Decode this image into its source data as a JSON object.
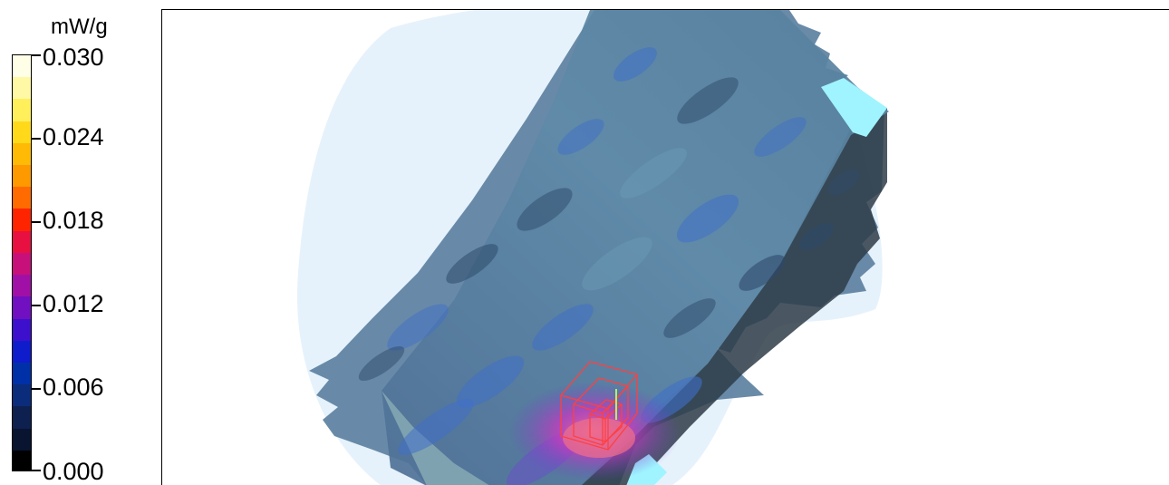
{
  "chart_data": {
    "type": "heatmap",
    "unit": "mW/g",
    "colorbar_ticks": [
      "0.030",
      "0.024",
      "0.018",
      "0.012",
      "0.006",
      "0.000"
    ],
    "value_range": [
      0.0,
      0.03
    ],
    "colorbar_colors": [
      "#ffffe8",
      "#fff9a6",
      "#ffef5a",
      "#ffd91a",
      "#ffba05",
      "#ff9900",
      "#ff6b00",
      "#ff2400",
      "#e81040",
      "#c8107a",
      "#a010a6",
      "#7010c0",
      "#3c10cc",
      "#0e1ccc",
      "#0030a8",
      "#0a2c7a",
      "#0e2050",
      "#081430",
      "#000000"
    ],
    "scene_colors": {
      "halo": "#e6f2fb",
      "phantom_face": "#5a7e9e",
      "phantom_face_light": "#6a9ab6",
      "phantom_side": "#2e3c48",
      "patch_blue": "#3f6fc8",
      "patch_dark": "#2e4a6a",
      "cyan_edge": "#9ff4ff",
      "hotspot": "#d438b8",
      "cube": "#ff4040",
      "axis": "#a8ff60"
    }
  }
}
